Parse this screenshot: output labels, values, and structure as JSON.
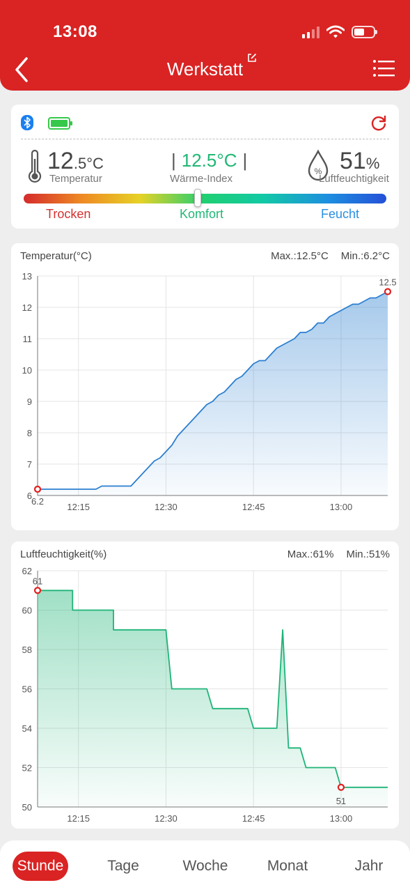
{
  "status_bar": {
    "time": "13:08"
  },
  "header": {
    "title": "Werkstatt"
  },
  "sensor": {
    "temperature_int": "12",
    "temperature_dec": ".5",
    "temperature_unit": "°C",
    "temperature_label": "Temperatur",
    "heat_index": "12.5°C",
    "heat_index_sep": "|",
    "heat_index_label": "Wärme-Index",
    "humidity_value": "51",
    "humidity_unit": "%",
    "humidity_label": "Luftfeuchtigkeit",
    "drop_glyph": "%",
    "comfort_level": 0.48,
    "scale": {
      "dry": "Trocken",
      "comfort": "Komfort",
      "wet": "Feucht"
    },
    "colors": {
      "accent": "#da2323",
      "comfort": "#1fb874",
      "wet": "#2b8fe0",
      "battery": "#35c84a",
      "bluetooth": "#1a7ff0"
    }
  },
  "charts": {
    "temperature": {
      "title": "Temperatur(°C)",
      "max": "Max.:12.5°C",
      "min": "Min.:6.2°C"
    },
    "humidity": {
      "title": "Luftfeuchtigkeit(%)",
      "max": "Max.:61%",
      "min": "Min.:51%"
    }
  },
  "chart_data": [
    {
      "type": "area",
      "title": "Temperatur(°C)",
      "x": [
        "12:08",
        "12:09",
        "12:10",
        "12:11",
        "12:12",
        "12:13",
        "12:14",
        "12:15",
        "12:16",
        "12:17",
        "12:18",
        "12:19",
        "12:20",
        "12:21",
        "12:22",
        "12:23",
        "12:24",
        "12:25",
        "12:26",
        "12:27",
        "12:28",
        "12:29",
        "12:30",
        "12:31",
        "12:32",
        "12:33",
        "12:34",
        "12:35",
        "12:36",
        "12:37",
        "12:38",
        "12:39",
        "12:40",
        "12:41",
        "12:42",
        "12:43",
        "12:44",
        "12:45",
        "12:46",
        "12:47",
        "12:48",
        "12:49",
        "12:50",
        "12:51",
        "12:52",
        "12:53",
        "12:54",
        "12:55",
        "12:56",
        "12:57",
        "12:58",
        "12:59",
        "13:00",
        "13:01",
        "13:02",
        "13:03",
        "13:04",
        "13:05",
        "13:06",
        "13:07",
        "13:08"
      ],
      "y": [
        6.2,
        6.2,
        6.2,
        6.2,
        6.2,
        6.2,
        6.2,
        6.2,
        6.2,
        6.2,
        6.2,
        6.3,
        6.3,
        6.3,
        6.3,
        6.3,
        6.3,
        6.5,
        6.7,
        6.9,
        7.1,
        7.2,
        7.4,
        7.6,
        7.9,
        8.1,
        8.3,
        8.5,
        8.7,
        8.9,
        9.0,
        9.2,
        9.3,
        9.5,
        9.7,
        9.8,
        10.0,
        10.2,
        10.3,
        10.3,
        10.5,
        10.7,
        10.8,
        10.9,
        11.0,
        11.2,
        11.2,
        11.3,
        11.5,
        11.5,
        11.7,
        11.8,
        11.9,
        12.0,
        12.1,
        12.1,
        12.2,
        12.3,
        12.3,
        12.4,
        12.5
      ],
      "x_ticks": [
        "12:15",
        "12:30",
        "12:45",
        "13:00"
      ],
      "y_ticks": [
        6,
        7,
        8,
        9,
        10,
        11,
        12,
        13
      ],
      "ylim": [
        6,
        13
      ],
      "annotations": [
        {
          "x": "12:08",
          "y": 6.2,
          "label": "6.2"
        },
        {
          "x": "13:08",
          "y": 12.5,
          "label": "12.5"
        }
      ],
      "grid": true,
      "color": "#2b7fd0"
    },
    {
      "type": "area",
      "title": "Luftfeuchtigkeit(%)",
      "steps": [
        {
          "x": "12:08",
          "y": 61
        },
        {
          "x": "12:14",
          "y": 61
        },
        {
          "x": "12:14",
          "y": 60
        },
        {
          "x": "12:21",
          "y": 60
        },
        {
          "x": "12:21",
          "y": 59
        },
        {
          "x": "12:30",
          "y": 59
        },
        {
          "x": "12:31",
          "y": 56
        },
        {
          "x": "12:37",
          "y": 56
        },
        {
          "x": "12:38",
          "y": 55
        },
        {
          "x": "12:44",
          "y": 55
        },
        {
          "x": "12:45",
          "y": 54
        },
        {
          "x": "12:49",
          "y": 54
        },
        {
          "x": "12:50",
          "y": 59
        },
        {
          "x": "12:51",
          "y": 53
        },
        {
          "x": "12:53",
          "y": 53
        },
        {
          "x": "12:54",
          "y": 52
        },
        {
          "x": "12:59",
          "y": 52
        },
        {
          "x": "13:00",
          "y": 51
        },
        {
          "x": "13:08",
          "y": 51
        }
      ],
      "x_ticks": [
        "12:15",
        "12:30",
        "12:45",
        "13:00"
      ],
      "y_ticks": [
        50,
        52,
        54,
        56,
        58,
        60,
        62
      ],
      "ylim": [
        50,
        62
      ],
      "annotations": [
        {
          "x": "12:08",
          "y": 61,
          "label": "61"
        },
        {
          "x": "13:00",
          "y": 51,
          "label": "51"
        }
      ],
      "grid": true,
      "color": "#1eb478"
    }
  ],
  "tabs": [
    {
      "label": "Stunde",
      "active": true
    },
    {
      "label": "Tage",
      "active": false
    },
    {
      "label": "Woche",
      "active": false
    },
    {
      "label": "Monat",
      "active": false
    },
    {
      "label": "Jahr",
      "active": false
    }
  ]
}
